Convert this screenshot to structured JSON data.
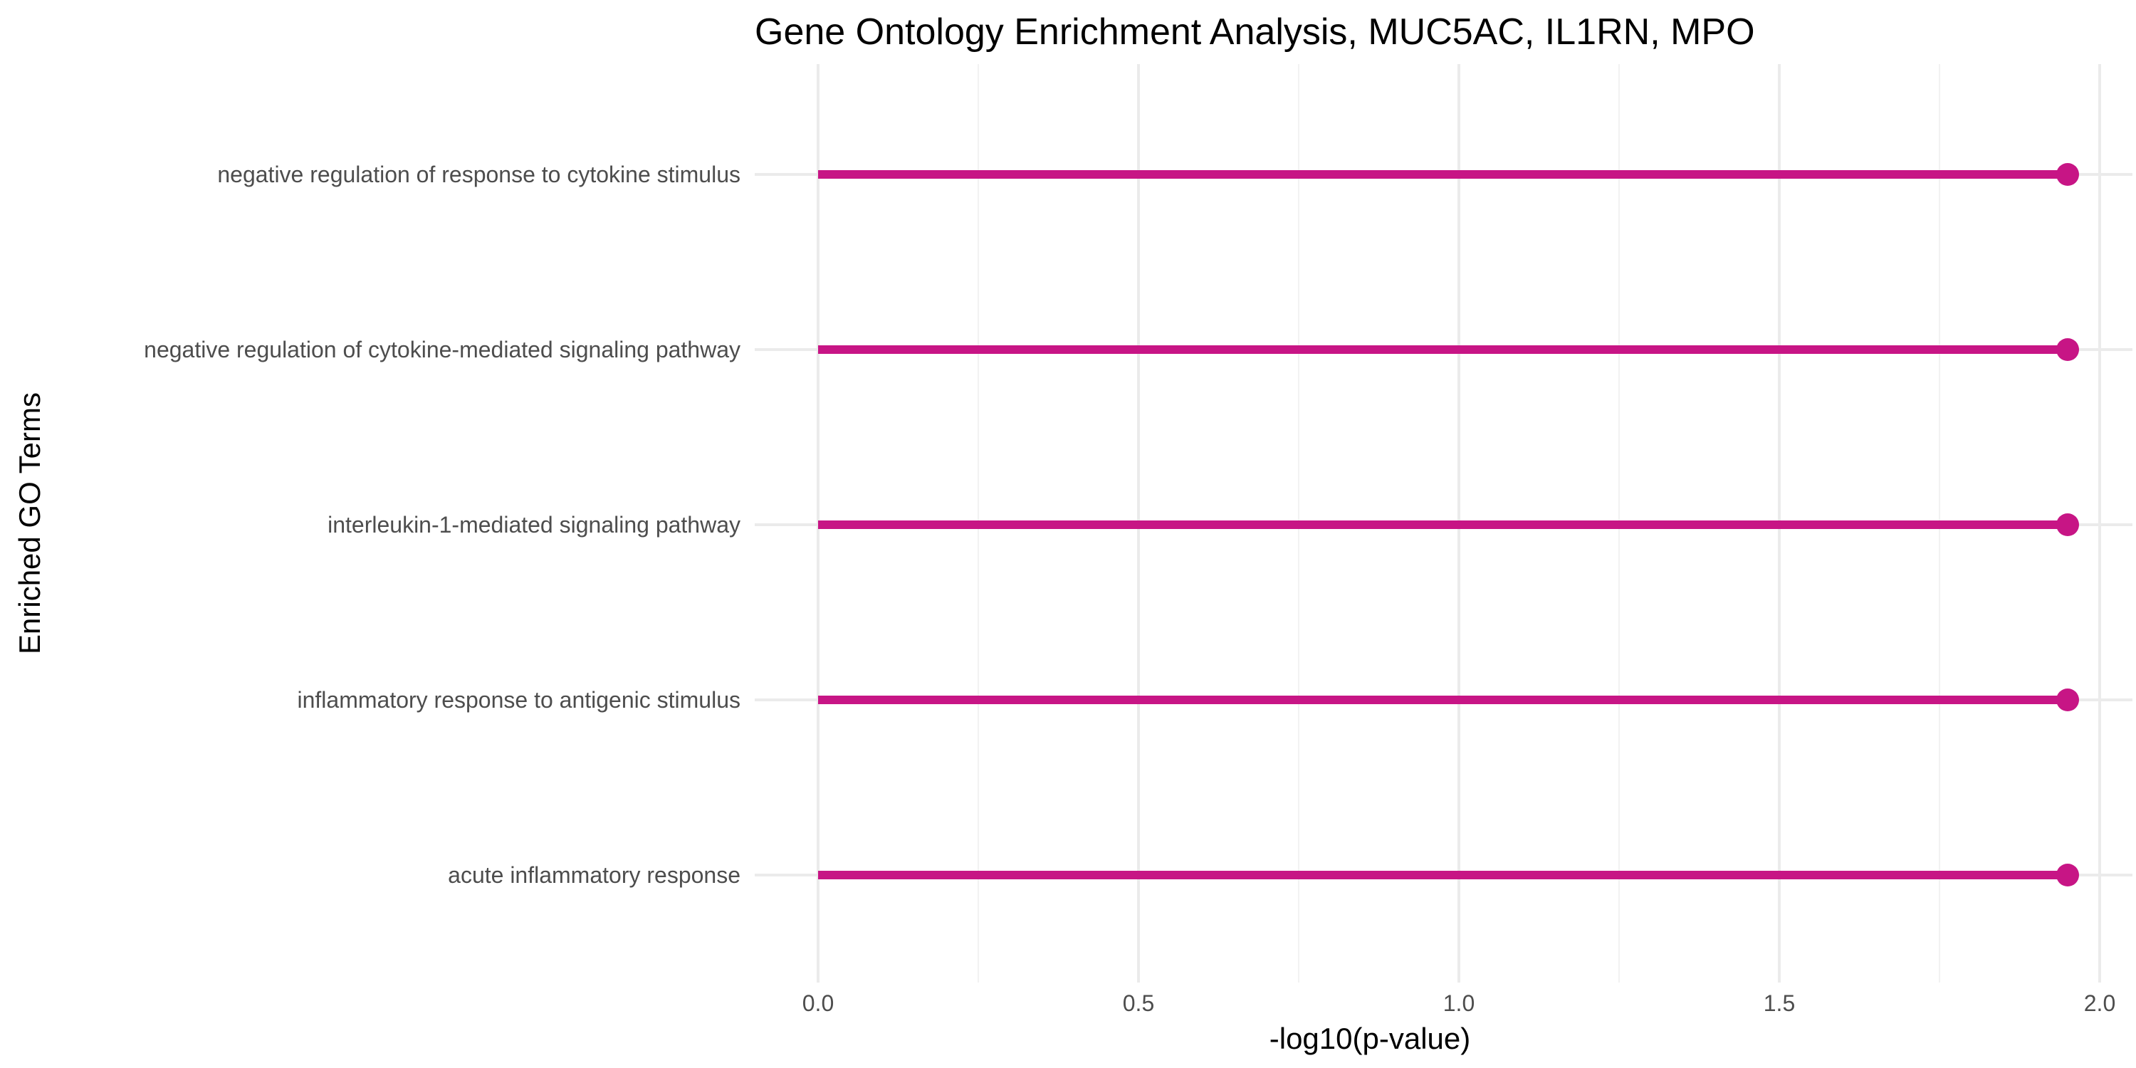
{
  "chart_data": {
    "type": "lollipop",
    "title": "Gene Ontology Enrichment Analysis, MUC5AC, IL1RN, MPO",
    "xlabel": "-log10(p-value)",
    "ylabel": "Enriched GO Terms",
    "xlim": [
      0,
      2.0
    ],
    "x_ticks": [
      "0.0",
      "0.5",
      "1.0",
      "1.5",
      "2.0"
    ],
    "x_tick_values": [
      0.0,
      0.5,
      1.0,
      1.5,
      2.0
    ],
    "grid": true,
    "legend": "none",
    "color": "#c71585",
    "categories": [
      "negative regulation of response to cytokine stimulus",
      "negative regulation of cytokine-mediated signaling pathway",
      "interleukin-1-mediated signaling pathway",
      "inflammatory response to antigenic stimulus",
      "acute inflammatory response"
    ],
    "values": [
      1.95,
      1.95,
      1.95,
      1.95,
      1.95
    ]
  }
}
